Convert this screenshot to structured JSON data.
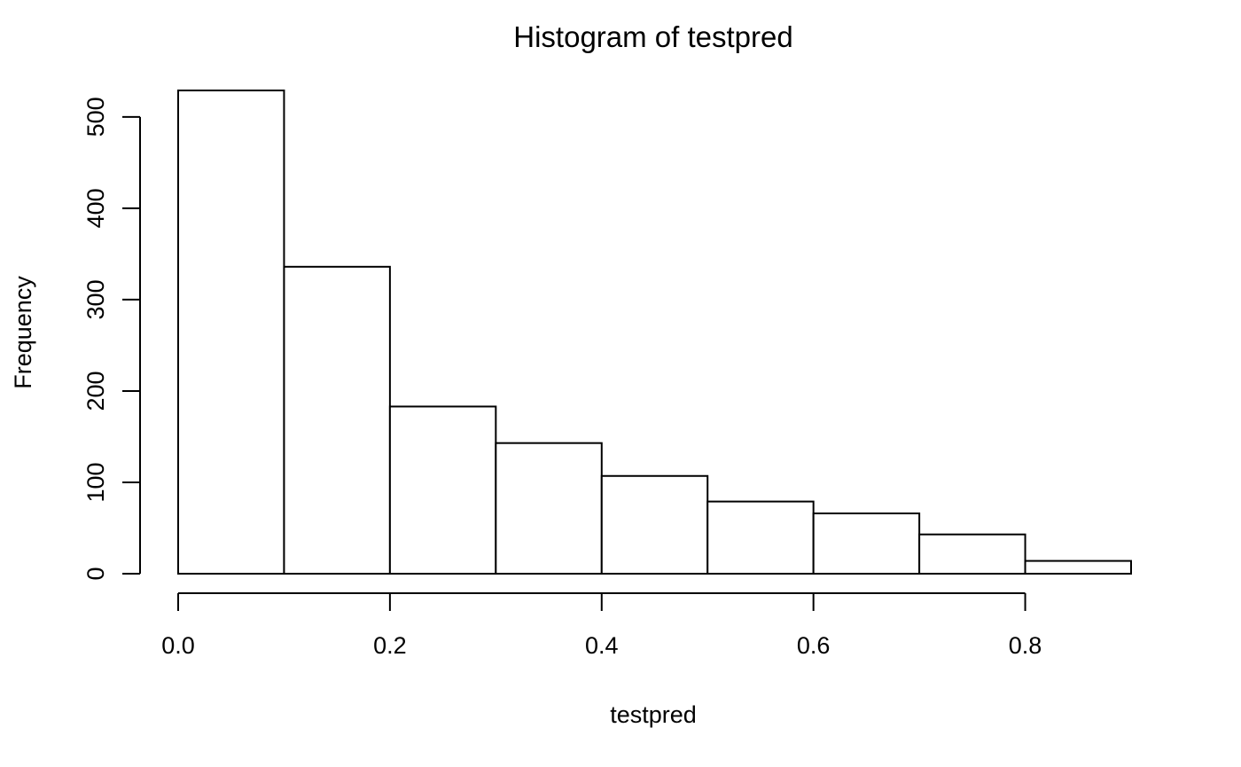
{
  "chart_data": {
    "type": "bar",
    "title": "Histogram of testpred",
    "xlabel": "testpred",
    "ylabel": "Frequency",
    "bins": [
      {
        "start": 0.0,
        "end": 0.1,
        "count": 529
      },
      {
        "start": 0.1,
        "end": 0.2,
        "count": 336
      },
      {
        "start": 0.2,
        "end": 0.3,
        "count": 183
      },
      {
        "start": 0.3,
        "end": 0.4,
        "count": 143
      },
      {
        "start": 0.4,
        "end": 0.5,
        "count": 107
      },
      {
        "start": 0.5,
        "end": 0.6,
        "count": 79
      },
      {
        "start": 0.6,
        "end": 0.7,
        "count": 66
      },
      {
        "start": 0.7,
        "end": 0.8,
        "count": 43
      },
      {
        "start": 0.8,
        "end": 0.9,
        "count": 14
      }
    ],
    "xlim": [
      0.0,
      0.9
    ],
    "ylim": [
      0,
      529
    ],
    "x_ticks": [
      0.0,
      0.2,
      0.4,
      0.6,
      0.8
    ],
    "x_tick_labels": [
      "0.0",
      "0.2",
      "0.4",
      "0.6",
      "0.8"
    ],
    "y_ticks": [
      0,
      100,
      200,
      300,
      400,
      500
    ],
    "y_tick_labels": [
      "0",
      "100",
      "200",
      "300",
      "400",
      "500"
    ],
    "grid": false,
    "legend": "none",
    "colors": {
      "bar_fill": "#ffffff",
      "bar_stroke": "#000000",
      "background": "#ffffff"
    }
  }
}
